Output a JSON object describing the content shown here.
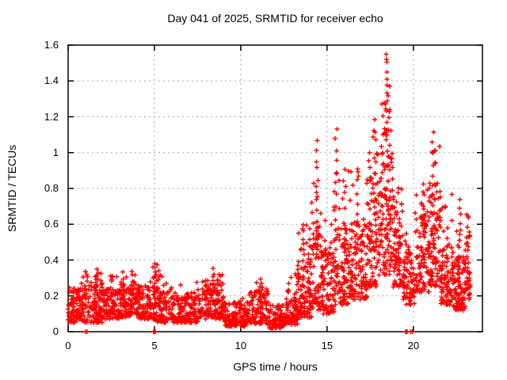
{
  "window": {
    "background": "#ffffff"
  },
  "chart_data": {
    "type": "scatter",
    "title": "Day 041 of 2025, SRMTID for receiver echo",
    "xlabel": "GPS time / hours",
    "ylabel": "SRMTID / TECUs",
    "xlim": [
      0,
      24
    ],
    "ylim": [
      0,
      1.6
    ],
    "xticks": [
      0,
      5,
      10,
      15,
      20
    ],
    "xtick_labels": [
      "0",
      "5",
      "10",
      "15",
      "20"
    ],
    "yticks": [
      0,
      0.2,
      0.4,
      0.6,
      0.8,
      1,
      1.2,
      1.4,
      1.6
    ],
    "ytick_labels": [
      "0",
      "0.2",
      "0.4",
      "0.6",
      "0.8",
      "1",
      "1.2",
      "1.4",
      "1.6"
    ],
    "grid": true,
    "legend": "none",
    "marker": {
      "shape": "plus",
      "size": 7
    },
    "marker_color": "#ff0000",
    "grid_color": "#a8a8a8",
    "axis_color": "#000000",
    "point_clusters": [
      [
        0.0,
        1.0,
        110,
        0.05,
        0.26,
        0.03,
        0.26,
        0.32
      ],
      [
        1.0,
        2.0,
        110,
        0.05,
        0.28,
        0.05,
        0.28,
        0.36
      ],
      [
        2.0,
        3.0,
        110,
        0.07,
        0.24,
        0.04,
        0.24,
        0.32
      ],
      [
        3.0,
        4.0,
        110,
        0.08,
        0.28,
        0.05,
        0.28,
        0.35
      ],
      [
        4.0,
        5.0,
        110,
        0.07,
        0.26,
        0.05,
        0.26,
        0.375
      ],
      [
        5.0,
        6.0,
        110,
        0.05,
        0.25,
        0.04,
        0.25,
        0.34
      ],
      [
        6.0,
        7.5,
        150,
        0.05,
        0.22,
        0.02,
        0.22,
        0.28
      ],
      [
        7.5,
        9.0,
        150,
        0.07,
        0.27,
        0.05,
        0.27,
        0.35
      ],
      [
        9.0,
        10.5,
        140,
        0.03,
        0.17,
        0.02,
        0.17,
        0.22
      ],
      [
        10.5,
        11.6,
        110,
        0.04,
        0.24,
        0.04,
        0.24,
        0.3
      ],
      [
        11.6,
        12.6,
        100,
        0.02,
        0.15,
        0.02,
        0.15,
        0.2
      ],
      [
        12.6,
        13.3,
        80,
        0.04,
        0.22,
        0.06,
        0.22,
        0.33
      ],
      [
        13.3,
        14.1,
        110,
        0.08,
        0.42,
        0.1,
        0.42,
        0.6
      ],
      [
        14.1,
        14.7,
        80,
        0.12,
        0.55,
        0.1,
        0.55,
        0.85
      ],
      [
        14.7,
        15.4,
        90,
        0.1,
        0.48,
        0.08,
        0.48,
        0.7
      ],
      [
        15.4,
        16.3,
        110,
        0.15,
        0.6,
        0.08,
        0.6,
        0.92
      ],
      [
        16.3,
        17.3,
        120,
        0.18,
        0.62,
        0.08,
        0.62,
        0.92
      ],
      [
        17.3,
        18.1,
        110,
        0.25,
        0.85,
        0.1,
        0.85,
        1.18
      ],
      [
        18.1,
        18.8,
        110,
        0.3,
        1.0,
        0.1,
        1.0,
        1.28
      ],
      [
        18.8,
        19.4,
        80,
        0.25,
        0.7,
        0.06,
        0.7,
        0.85
      ],
      [
        19.4,
        20.1,
        80,
        0.15,
        0.45,
        0.04,
        0.45,
        0.55
      ],
      [
        20.1,
        21.0,
        110,
        0.22,
        0.65,
        0.08,
        0.65,
        0.85
      ],
      [
        21.0,
        21.6,
        90,
        0.25,
        0.8,
        0.08,
        0.8,
        1.05
      ],
      [
        21.6,
        22.3,
        90,
        0.15,
        0.5,
        0.06,
        0.5,
        0.8
      ],
      [
        22.3,
        23.0,
        110,
        0.12,
        0.42,
        0.05,
        0.42,
        0.6
      ],
      [
        23.0,
        23.3,
        40,
        0.18,
        0.55,
        0.08,
        0.55,
        0.68
      ]
    ],
    "spike_columns": [
      [
        1.65,
        0.24,
        0.35,
        6
      ],
      [
        2.5,
        0.22,
        0.32,
        5
      ],
      [
        3.7,
        0.22,
        0.33,
        5
      ],
      [
        5.0,
        0.25,
        0.375,
        7
      ],
      [
        5.15,
        0.24,
        0.37,
        4
      ],
      [
        8.45,
        0.24,
        0.35,
        6
      ],
      [
        11.15,
        0.18,
        0.3,
        5
      ],
      [
        13.65,
        0.3,
        0.55,
        6
      ],
      [
        14.42,
        0.55,
        1.08,
        10
      ],
      [
        15.52,
        0.45,
        1.13,
        12
      ],
      [
        16.0,
        0.45,
        0.92,
        7
      ],
      [
        16.75,
        0.55,
        0.92,
        6
      ],
      [
        17.82,
        0.75,
        1.18,
        8
      ],
      [
        18.43,
        1.02,
        1.5,
        13
      ],
      [
        18.58,
        0.85,
        1.38,
        9
      ],
      [
        20.62,
        0.55,
        0.82,
        6
      ],
      [
        21.15,
        0.65,
        1.11,
        9
      ],
      [
        22.7,
        0.42,
        0.74,
        8
      ],
      [
        23.15,
        0.35,
        0.65,
        5
      ]
    ],
    "zero_points": [
      1.02,
      1.1,
      4.96,
      4.99,
      5.02,
      5.05,
      19.54,
      19.57,
      19.6,
      19.63,
      19.85,
      19.93
    ],
    "peak_points": [
      [
        18.42,
        1.55
      ],
      [
        18.45,
        1.52
      ]
    ]
  }
}
